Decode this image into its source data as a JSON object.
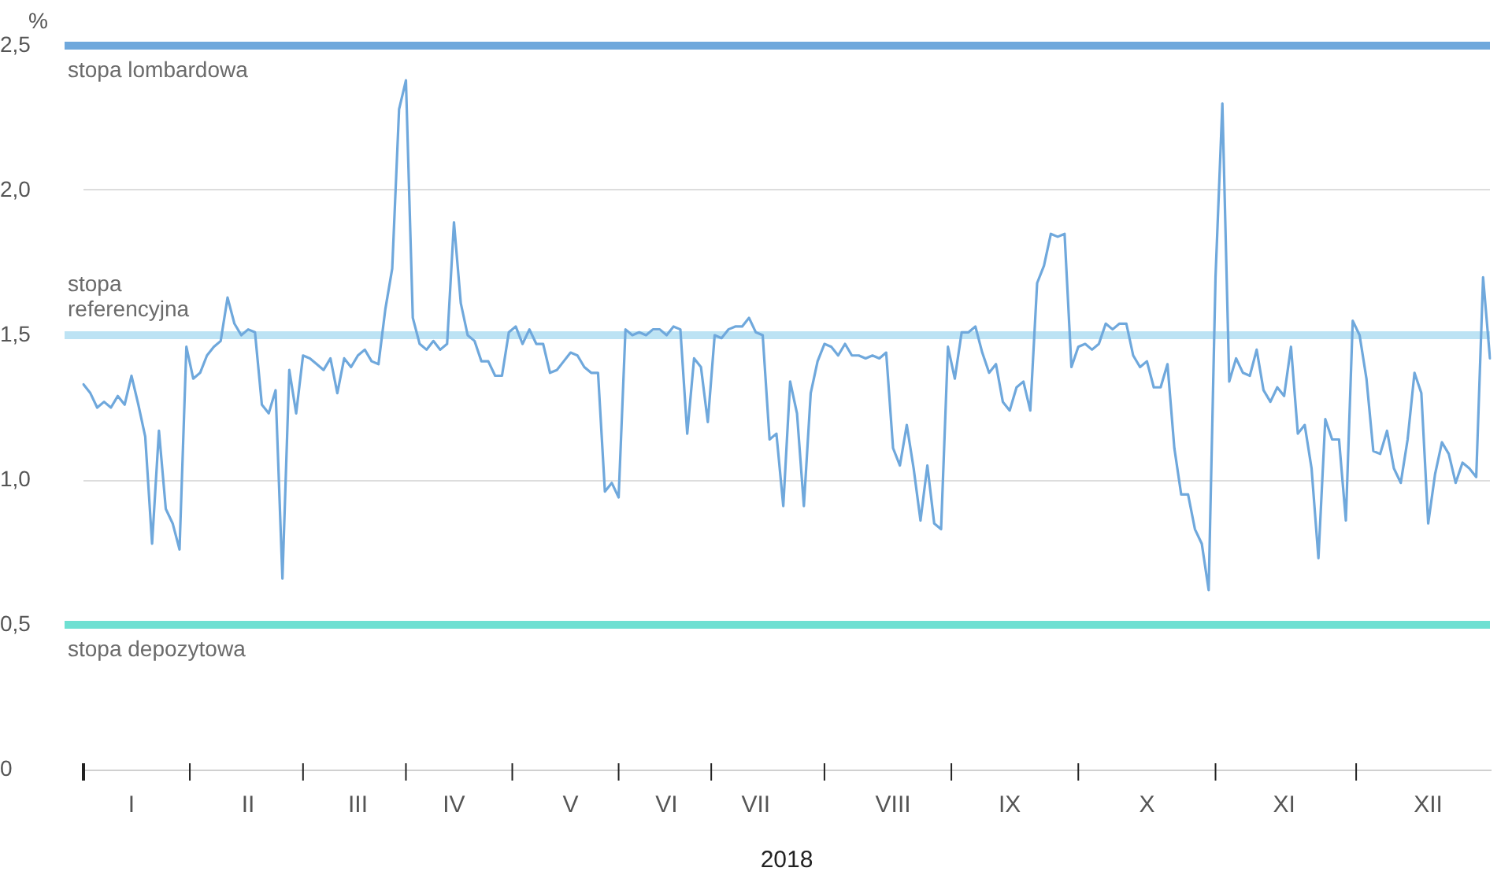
{
  "chart_data": {
    "type": "line",
    "xlabel": "2018",
    "ylabel": "%",
    "categories": [
      null,
      null,
      null,
      null,
      null,
      null,
      null,
      "I",
      null,
      null,
      null,
      null,
      null,
      null,
      null,
      null,
      null,
      null,
      null,
      null,
      null,
      null,
      null,
      null,
      "II",
      null,
      null,
      null,
      null,
      null,
      null,
      null,
      null,
      null,
      null,
      null,
      null,
      null,
      null,
      null,
      "III",
      null,
      null,
      null,
      null,
      null,
      null,
      null,
      null,
      null,
      null,
      null,
      null,
      null,
      "IV",
      null,
      null,
      null,
      null,
      null,
      null,
      null,
      null,
      null,
      null,
      null,
      null,
      null,
      null,
      null,
      null,
      "V",
      null,
      null,
      null,
      null,
      null,
      null,
      null,
      null,
      null,
      null,
      null,
      null,
      null,
      "VI",
      null,
      null,
      null,
      null,
      null,
      null,
      null,
      null,
      null,
      null,
      null,
      null,
      "VII",
      null,
      null,
      null,
      null,
      null,
      null,
      null,
      null,
      null,
      null,
      null,
      null,
      null,
      null,
      null,
      null,
      null,
      null,
      null,
      "VIII",
      null,
      null,
      null,
      null,
      null,
      null,
      null,
      null,
      null,
      null,
      null,
      null,
      null,
      null,
      null,
      null,
      "IX",
      null,
      null,
      null,
      null,
      null,
      null,
      null,
      null,
      null,
      null,
      null,
      null,
      null,
      null,
      null,
      null,
      null,
      null,
      null,
      "X",
      null,
      null,
      null,
      null,
      null,
      null,
      null,
      null,
      null,
      null,
      null,
      null,
      null,
      null,
      null,
      null,
      null,
      null,
      null,
      "XI",
      null,
      null,
      null,
      null,
      null,
      null,
      null,
      null,
      null,
      null,
      null,
      null,
      null,
      null,
      null,
      null,
      null,
      null,
      null,
      null,
      "XII",
      null,
      null,
      null,
      null,
      null,
      null,
      null,
      null,
      null
    ],
    "series": [
      {
        "color": "#6fa8dc",
        "values": [
          1.33,
          1.3,
          1.25,
          1.27,
          1.25,
          1.29,
          1.26,
          1.36,
          1.26,
          1.15,
          0.78,
          1.17,
          0.9,
          0.85,
          0.76,
          1.46,
          1.35,
          1.37,
          1.43,
          1.46,
          1.48,
          1.63,
          1.54,
          1.5,
          1.52,
          1.51,
          1.26,
          1.23,
          1.31,
          0.66,
          1.38,
          1.23,
          1.43,
          1.42,
          1.4,
          1.38,
          1.42,
          1.3,
          1.42,
          1.39,
          1.43,
          1.45,
          1.41,
          1.4,
          1.59,
          1.73,
          2.28,
          2.38,
          1.56,
          1.47,
          1.45,
          1.48,
          1.45,
          1.47,
          1.89,
          1.61,
          1.5,
          1.48,
          1.41,
          1.41,
          1.36,
          1.36,
          1.51,
          1.53,
          1.47,
          1.52,
          1.47,
          1.47,
          1.37,
          1.38,
          1.41,
          1.44,
          1.43,
          1.39,
          1.37,
          1.37,
          0.96,
          0.99,
          0.94,
          1.52,
          1.5,
          1.51,
          1.5,
          1.52,
          1.52,
          1.5,
          1.53,
          1.52,
          1.16,
          1.42,
          1.39,
          1.2,
          1.5,
          1.49,
          1.52,
          1.53,
          1.53,
          1.56,
          1.51,
          1.5,
          1.14,
          1.16,
          0.91,
          1.34,
          1.23,
          0.91,
          1.3,
          1.41,
          1.47,
          1.46,
          1.43,
          1.47,
          1.43,
          1.43,
          1.42,
          1.43,
          1.42,
          1.44,
          1.11,
          1.05,
          1.19,
          1.04,
          0.86,
          1.05,
          0.85,
          0.83,
          1.46,
          1.35,
          1.51,
          1.51,
          1.53,
          1.44,
          1.37,
          1.4,
          1.27,
          1.24,
          1.32,
          1.34,
          1.24,
          1.68,
          1.74,
          1.85,
          1.84,
          1.85,
          1.39,
          1.46,
          1.47,
          1.45,
          1.47,
          1.54,
          1.52,
          1.54,
          1.54,
          1.43,
          1.39,
          1.41,
          1.32,
          1.32,
          1.4,
          1.11,
          0.95,
          0.95,
          0.83,
          0.78,
          0.62,
          1.7,
          2.3,
          1.34,
          1.42,
          1.37,
          1.36,
          1.45,
          1.31,
          1.27,
          1.32,
          1.29,
          1.46,
          1.16,
          1.19,
          1.04,
          0.73,
          1.21,
          1.14,
          1.14,
          0.86,
          1.55,
          1.5,
          1.35,
          1.1,
          1.09,
          1.17,
          1.04,
          0.99,
          1.14,
          1.37,
          1.3,
          0.85,
          1.02,
          1.13,
          1.09,
          0.99,
          1.06,
          1.04,
          1.01,
          1.7,
          1.42
        ]
      }
    ],
    "ylim": [
      0,
      2.5
    ],
    "yticks": [
      0,
      {
        "value": 0.5,
        "label": "0,5"
      },
      {
        "value": 1,
        "label": "1,0"
      },
      {
        "value": 1.5,
        "label": "1,5"
      },
      {
        "value": 2,
        "label": "2,0"
      },
      {
        "value": 2.5,
        "label": "2,5"
      }
    ],
    "ref_lines": [
      {
        "axis": "y",
        "value": 2.5,
        "label": "stopa lombardowa",
        "color": "#6fa8dc"
      },
      {
        "axis": "y",
        "value": 1.5,
        "label": "stopa referencyjna",
        "color": "#bde3f4"
      },
      {
        "axis": "y",
        "value": 0.5,
        "label": "stopa depozytowa",
        "color": "#6ee0d2"
      }
    ],
    "grid": "y",
    "marker": "none",
    "line_style": "solid"
  }
}
